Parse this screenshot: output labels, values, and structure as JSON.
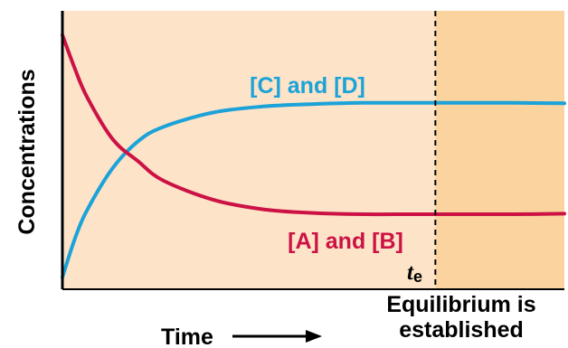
{
  "chart_data": {
    "type": "line",
    "title": "",
    "xlabel": "Time",
    "ylabel": "Concentrations",
    "x": [
      0,
      0.25,
      0.5,
      1,
      1.5,
      2,
      3,
      4,
      5,
      6,
      7,
      8,
      9,
      10
    ],
    "series": [
      {
        "name": "[C] and [D]",
        "color": "#1ba3d9",
        "values": [
          0,
          0.16,
          0.28,
          0.45,
          0.56,
          0.62,
          0.68,
          0.705,
          0.715,
          0.72,
          0.72,
          0.72,
          0.72,
          0.718
        ]
      },
      {
        "name": "[A] and [B]",
        "color": "#cc1245",
        "values": [
          1.0,
          0.86,
          0.74,
          0.57,
          0.48,
          0.4,
          0.32,
          0.28,
          0.265,
          0.26,
          0.26,
          0.26,
          0.26,
          0.262
        ]
      }
    ],
    "xlim": [
      0,
      10
    ],
    "ylim": [
      -0.05,
      1.1
    ],
    "equilibrium": {
      "marker_label": "t",
      "marker_subscript": "e",
      "x": 7.43,
      "note_line1": "Equilibrium is",
      "note_line2": "established"
    },
    "colors": {
      "background_pre": "#fde3c7",
      "background_post": "#fad39e",
      "axis": "#000000"
    }
  }
}
